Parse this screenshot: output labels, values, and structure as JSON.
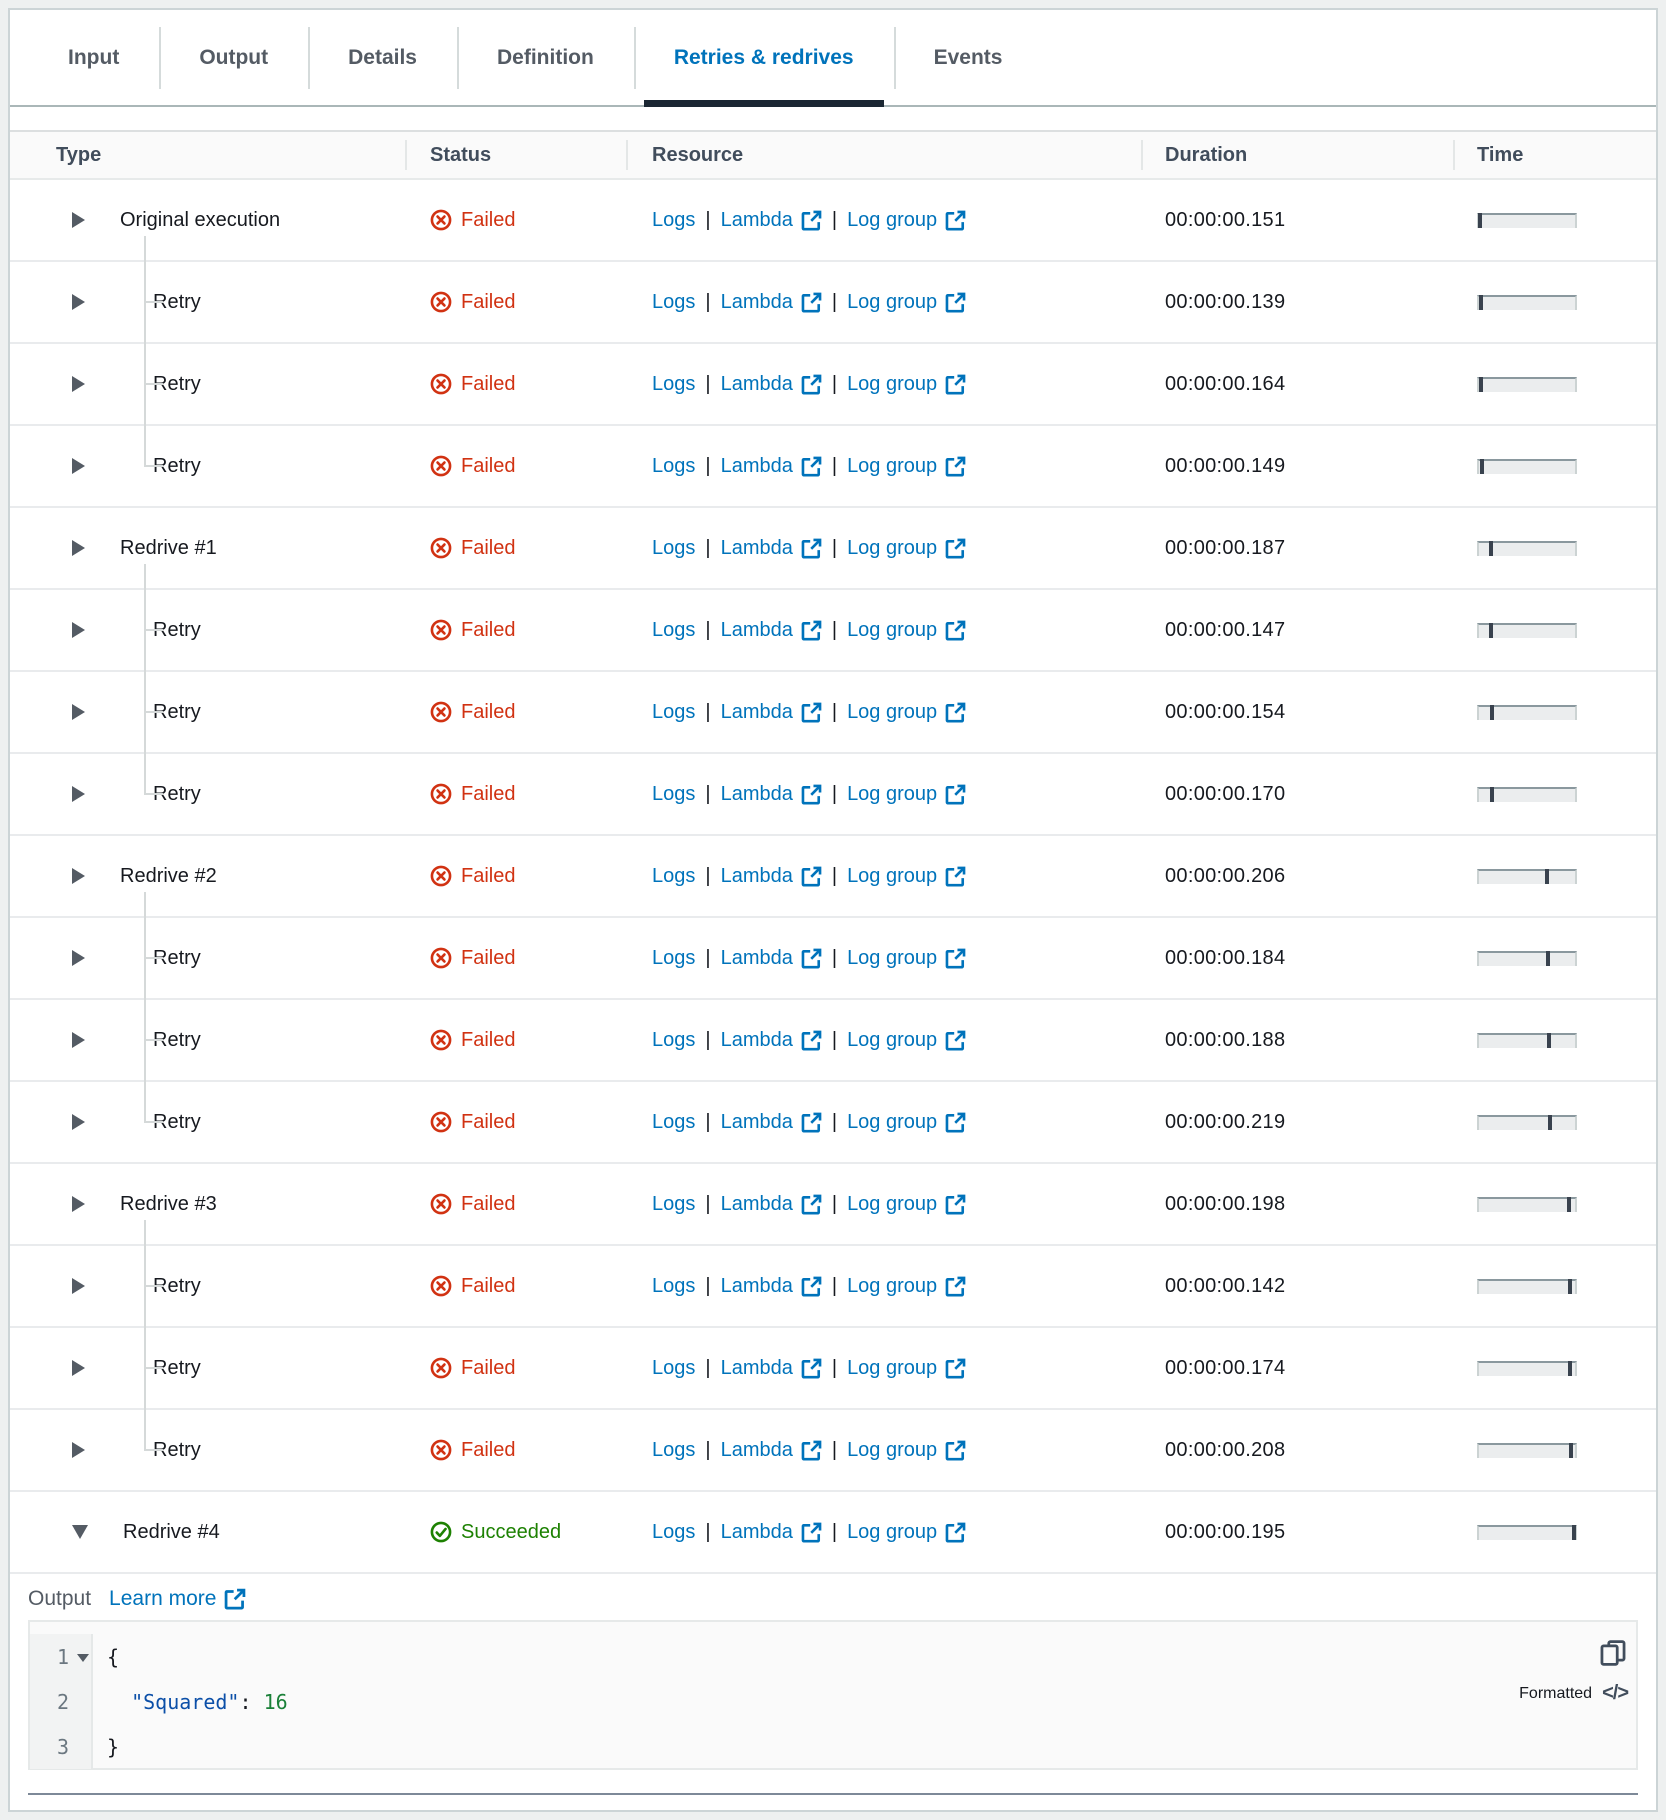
{
  "colors": {
    "link": "#0073bb",
    "failed": "#d13212",
    "succeeded": "#1d8102",
    "tab_active": "#0073bb",
    "tab_indicator": "#1b2733"
  },
  "tabs": [
    {
      "label": "Input",
      "active": false
    },
    {
      "label": "Output",
      "active": false
    },
    {
      "label": "Details",
      "active": false
    },
    {
      "label": "Definition",
      "active": false
    },
    {
      "label": "Retries & redrives",
      "active": true
    },
    {
      "label": "Events",
      "active": false
    }
  ],
  "table": {
    "columns": [
      "Type",
      "Status",
      "Resource",
      "Duration",
      "Time"
    ],
    "resource": {
      "logs": "Logs",
      "lambda": "Lambda",
      "log_group": "Log group",
      "separator": "|"
    },
    "rows": [
      {
        "type": "Original execution",
        "tree": "parent",
        "expanded": false,
        "status": "Failed",
        "duration": "00:00:00.151",
        "time_frac": 0.015
      },
      {
        "type": "Retry",
        "tree": "child",
        "expanded": false,
        "status": "Failed",
        "duration": "00:00:00.139",
        "time_frac": 0.02
      },
      {
        "type": "Retry",
        "tree": "child",
        "expanded": false,
        "status": "Failed",
        "duration": "00:00:00.164",
        "time_frac": 0.025
      },
      {
        "type": "Retry",
        "tree": "child-last",
        "expanded": false,
        "status": "Failed",
        "duration": "00:00:00.149",
        "time_frac": 0.035
      },
      {
        "type": "Redrive #1",
        "tree": "parent",
        "expanded": false,
        "status": "Failed",
        "duration": "00:00:00.187",
        "time_frac": 0.12
      },
      {
        "type": "Retry",
        "tree": "child",
        "expanded": false,
        "status": "Failed",
        "duration": "00:00:00.147",
        "time_frac": 0.13
      },
      {
        "type": "Retry",
        "tree": "child",
        "expanded": false,
        "status": "Failed",
        "duration": "00:00:00.154",
        "time_frac": 0.135
      },
      {
        "type": "Retry",
        "tree": "child-last",
        "expanded": false,
        "status": "Failed",
        "duration": "00:00:00.170",
        "time_frac": 0.14
      },
      {
        "type": "Redrive #2",
        "tree": "parent",
        "expanded": false,
        "status": "Failed",
        "duration": "00:00:00.206",
        "time_frac": 0.71
      },
      {
        "type": "Retry",
        "tree": "child",
        "expanded": false,
        "status": "Failed",
        "duration": "00:00:00.184",
        "time_frac": 0.72
      },
      {
        "type": "Retry",
        "tree": "child",
        "expanded": false,
        "status": "Failed",
        "duration": "00:00:00.188",
        "time_frac": 0.725
      },
      {
        "type": "Retry",
        "tree": "child-last",
        "expanded": false,
        "status": "Failed",
        "duration": "00:00:00.219",
        "time_frac": 0.735
      },
      {
        "type": "Redrive #3",
        "tree": "parent",
        "expanded": false,
        "status": "Failed",
        "duration": "00:00:00.198",
        "time_frac": 0.94
      },
      {
        "type": "Retry",
        "tree": "child",
        "expanded": false,
        "status": "Failed",
        "duration": "00:00:00.142",
        "time_frac": 0.945
      },
      {
        "type": "Retry",
        "tree": "child",
        "expanded": false,
        "status": "Failed",
        "duration": "00:00:00.174",
        "time_frac": 0.95
      },
      {
        "type": "Retry",
        "tree": "child-last",
        "expanded": false,
        "status": "Failed",
        "duration": "00:00:00.208",
        "time_frac": 0.96
      },
      {
        "type": "Redrive #4",
        "tree": "parent-expanded",
        "expanded": true,
        "status": "Succeeded",
        "duration": "00:00:00.195",
        "time_frac": 0.985
      }
    ]
  },
  "output": {
    "label": "Output",
    "learn_more": "Learn more",
    "formatted_label": "Formatted",
    "code_lines": [
      {
        "num": "1",
        "fold": true,
        "tokens": [
          {
            "text": "{",
            "type": "plain"
          }
        ]
      },
      {
        "num": "2",
        "fold": false,
        "tokens": [
          {
            "text": "  ",
            "type": "plain"
          },
          {
            "text": "\"Squared\"",
            "type": "key"
          },
          {
            "text": ": ",
            "type": "plain"
          },
          {
            "text": "16",
            "type": "number"
          }
        ]
      },
      {
        "num": "3",
        "fold": false,
        "tokens": [
          {
            "text": "}",
            "type": "plain"
          }
        ]
      }
    ]
  }
}
